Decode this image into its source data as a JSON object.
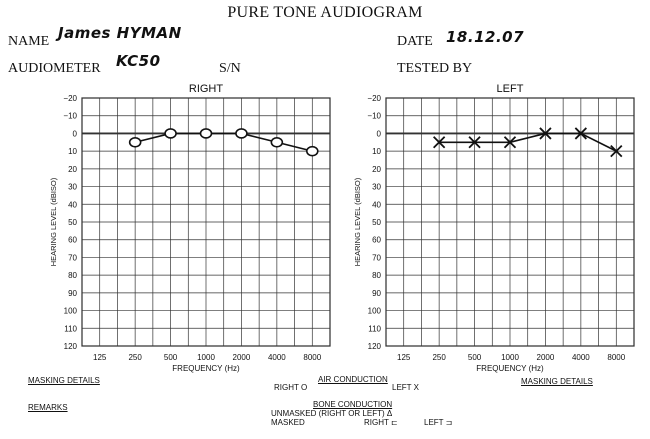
{
  "header": {
    "title": "PURE TONE AUDIOGRAM",
    "name_label": "NAME",
    "name_value": "James HYMAN",
    "date_label": "DATE",
    "date_value": "18.12.07",
    "audiometer_label": "AUDIOMETER",
    "audiometer_value": "KC50",
    "sn_label": "S/N",
    "tested_by_label": "TESTED BY"
  },
  "footer": {
    "masking_details": "MASKING DETAILS",
    "remarks": "REMARKS",
    "air_conduction": "AIR CONDUCTION",
    "right_o": "RIGHT O",
    "left_x": "LEFT X",
    "masking_details_right": "MASKING DETAILS",
    "bone_conduction": "BONE CONDUCTION",
    "unmasked": "UNMASKED (RIGHT OR LEFT)  Δ",
    "masked": "MASKED",
    "right_bracket": "RIGHT ⊏",
    "left_bracket": "LEFT ⊐"
  },
  "chart_data": [
    {
      "type": "line",
      "title": "RIGHT",
      "xlabel": "FREQUENCY (Hz)",
      "ylabel": "HEARING LEVEL (dBISO)",
      "x_ticks": [
        "125",
        "250",
        "500",
        "1000",
        "2000",
        "4000",
        "8000"
      ],
      "y_ticks": [
        -20,
        -10,
        0,
        10,
        20,
        30,
        40,
        50,
        60,
        70,
        80,
        90,
        100,
        110,
        120
      ],
      "ylim": [
        -20,
        120
      ],
      "y_inverted": true,
      "x_scale": "log2",
      "marker": "circle",
      "series": [
        {
          "x": [
            250,
            500,
            1000,
            2000,
            4000,
            8000
          ],
          "values": [
            5,
            0,
            0,
            0,
            5,
            10
          ]
        }
      ]
    },
    {
      "type": "line",
      "title": "LEFT",
      "xlabel": "FREQUENCY (Hz)",
      "ylabel": "HEARING LEVEL (dBISO)",
      "x_ticks": [
        "125",
        "250",
        "500",
        "1000",
        "2000",
        "4000",
        "8000"
      ],
      "y_ticks": [
        -20,
        -10,
        0,
        10,
        20,
        30,
        40,
        50,
        60,
        70,
        80,
        90,
        100,
        110,
        120
      ],
      "ylim": [
        -20,
        120
      ],
      "y_inverted": true,
      "x_scale": "log2",
      "marker": "cross",
      "series": [
        {
          "x": [
            250,
            500,
            1000,
            2000,
            4000,
            8000
          ],
          "values": [
            5,
            5,
            5,
            0,
            0,
            10
          ]
        }
      ]
    }
  ]
}
